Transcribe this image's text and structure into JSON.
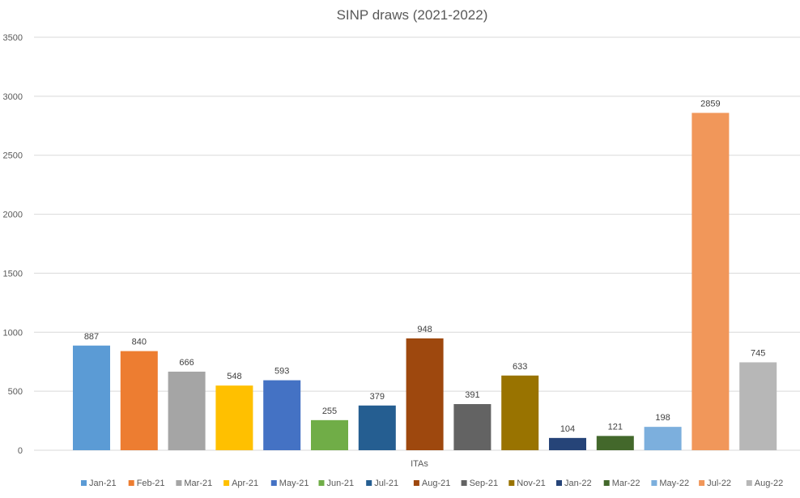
{
  "chart_data": {
    "type": "bar",
    "title": "SINP draws (2021-2022)",
    "xlabel": "ITAs",
    "ylabel": "",
    "ylim": [
      0,
      3500
    ],
    "yticks": [
      0,
      500,
      1000,
      1500,
      2000,
      2500,
      3000,
      3500
    ],
    "grid": true,
    "legend_position": "bottom",
    "series": [
      {
        "name": "Jan-21",
        "value": 887,
        "color": "#5B9BD5"
      },
      {
        "name": "Feb-21",
        "value": 840,
        "color": "#ED7D31"
      },
      {
        "name": "Mar-21",
        "value": 666,
        "color": "#A5A5A5"
      },
      {
        "name": "Apr-21",
        "value": 548,
        "color": "#FFC000"
      },
      {
        "name": "May-21",
        "value": 593,
        "color": "#4472C4"
      },
      {
        "name": "Jun-21",
        "value": 255,
        "color": "#70AD47"
      },
      {
        "name": "Jul-21",
        "value": 379,
        "color": "#255E91"
      },
      {
        "name": "Aug-21",
        "value": 948,
        "color": "#9E480E"
      },
      {
        "name": "Sep-21",
        "value": 391,
        "color": "#636363"
      },
      {
        "name": "Nov-21",
        "value": 633,
        "color": "#997300"
      },
      {
        "name": "Jan-22",
        "value": 104,
        "color": "#264478"
      },
      {
        "name": "Mar-22",
        "value": 121,
        "color": "#43682B"
      },
      {
        "name": "May-22",
        "value": 198,
        "color": "#7CAFDD"
      },
      {
        "name": "Jul-22",
        "value": 2859,
        "color": "#F1975A"
      },
      {
        "name": "Aug-22",
        "value": 745,
        "color": "#B7B7B7"
      }
    ]
  },
  "colors": {
    "gridline": "#D9D9D9",
    "axis_text": "#595959",
    "background": "#FFFFFF"
  }
}
